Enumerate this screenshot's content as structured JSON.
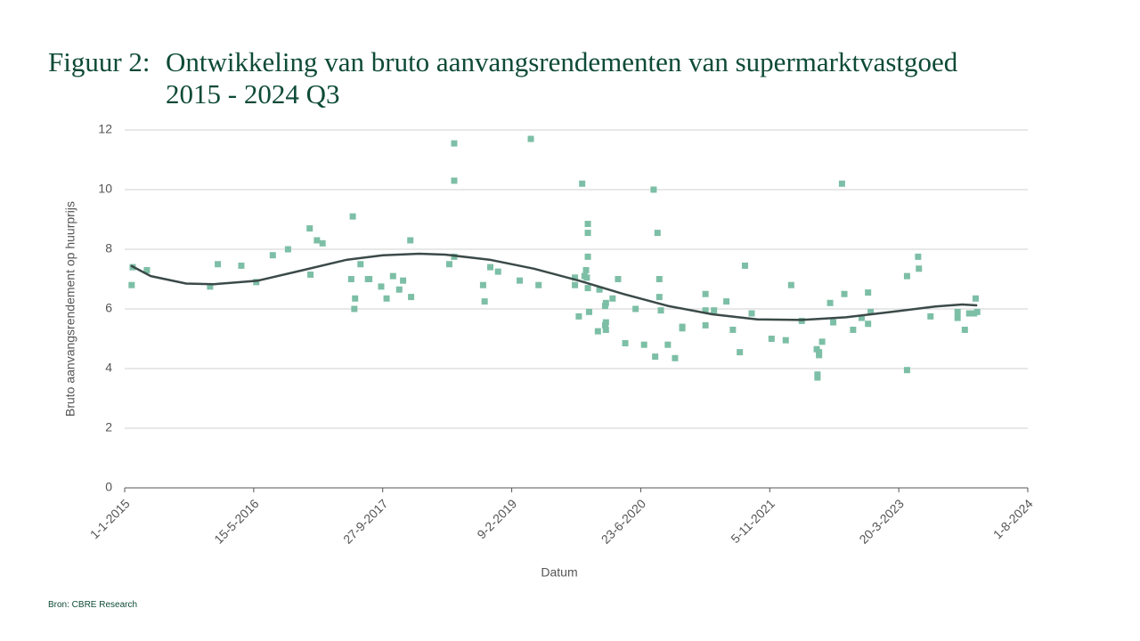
{
  "chart_data": {
    "type": "scatter",
    "label": "Figuur 2:",
    "title_lines": [
      "Ontwikkeling van bruto aanvangsrendementen van supermarktvastgoed",
      "2015 - 2024 Q3"
    ],
    "x_label": "Datum",
    "y_label": "Bruto aanvangsrendement op huurprijs",
    "source": "Bron: CBRE Research",
    "xlim": [
      "1-1-2015",
      "1-8-2024"
    ],
    "xticks": [
      "1-1-2015",
      "15-5-2016",
      "27-9-2017",
      "9-2-2019",
      "23-6-2020",
      "5-11-2021",
      "20-3-2023",
      "1-8-2024"
    ],
    "ylim": [
      0,
      12
    ],
    "yticks": [
      0,
      2,
      4,
      6,
      8,
      10,
      12
    ],
    "grid": true,
    "series": [
      {
        "type": "scatter",
        "color": "#7dbfa6",
        "x": [
          "28-1-2015",
          "1-2-2015",
          "28-3-2015",
          "28-11-2015",
          "28-12-2015",
          "28-3-2016",
          "25-5-2016",
          "28-7-2016",
          "25-9-2016",
          "18-12-2016",
          "21-12-2016",
          "15-1-2017",
          "6-2-2017",
          "3-6-2017",
          "28-5-2017",
          "9-6-2017",
          "12-6-2017",
          "3-7-2017",
          "1-8-2017",
          "6-8-2017",
          "21-9-2017",
          "12-10-2017",
          "6-11-2017",
          "30-11-2017",
          "15-12-2017",
          "12-1-2018",
          "15-1-2018",
          "12-6-2018",
          "1-7-2018",
          "1-7-2018",
          "1-7-2018",
          "21-10-2018",
          "27-10-2018",
          "18-11-2018",
          "18-12-2018",
          "12-3-2019",
          "24-4-2019",
          "24-5-2019",
          "12-10-2019",
          "12-10-2019",
          "27-10-2019",
          "9-11-2019",
          "18-11-2019",
          "24-11-2019",
          "27-11-2019",
          "1-12-2019",
          "1-12-2019",
          "1-12-2019",
          "1-12-2019",
          "6-12-2019",
          "9-1-2020",
          "15-1-2020",
          "6-2-2020",
          "9-2-2020",
          "9-2-2020",
          "6-2-2020",
          "9-2-2020",
          "6-3-2020",
          "27-3-2020",
          "24-4-2020",
          "3-6-2020",
          "6-7-2020",
          "12-8-2020",
          "18-8-2020",
          "27-8-2020",
          "3-9-2020",
          "3-9-2020",
          "9-9-2020",
          "6-10-2020",
          "3-11-2020",
          "1-12-2020",
          "1-12-2020",
          "1-3-2021",
          "1-3-2021",
          "1-3-2021",
          "3-4-2021",
          "21-5-2021",
          "15-6-2021",
          "12-7-2021",
          "1-8-2021",
          "27-8-2021",
          "12-11-2021",
          "6-1-2022",
          "27-1-2022",
          "9-3-2022",
          "6-5-2022",
          "9-5-2022",
          "9-5-2022",
          "15-5-2022",
          "15-5-2022",
          "27-5-2022",
          "27-6-2022",
          "9-7-2022",
          "12-8-2022",
          "21-8-2022",
          "24-9-2022",
          "27-10-2022",
          "21-11-2022",
          "21-11-2022",
          "1-12-2022",
          "21-4-2023",
          "21-4-2023",
          "3-6-2023",
          "6-6-2023",
          "21-7-2023",
          "3-11-2023",
          "3-11-2023",
          "1-12-2023",
          "18-12-2023",
          "6-1-2024",
          "12-1-2024",
          "18-1-2024"
        ],
        "values": [
          6.8,
          7.4,
          7.3,
          6.75,
          7.5,
          7.45,
          6.9,
          7.8,
          8.0,
          8.7,
          7.15,
          8.3,
          8.2,
          9.1,
          7.0,
          6.0,
          6.35,
          7.5,
          7.0,
          7.0,
          6.75,
          6.35,
          7.1,
          6.65,
          6.95,
          8.3,
          6.4,
          7.5,
          11.55,
          10.3,
          7.75,
          6.8,
          6.25,
          7.4,
          7.25,
          6.95,
          11.7,
          6.8,
          7.05,
          6.8,
          5.75,
          10.2,
          7.1,
          7.3,
          7.05,
          8.85,
          8.55,
          7.75,
          6.7,
          5.9,
          5.25,
          6.65,
          5.45,
          5.55,
          5.3,
          6.1,
          6.2,
          6.35,
          7.0,
          4.85,
          6.0,
          4.8,
          10.0,
          4.4,
          8.55,
          7.0,
          6.4,
          5.95,
          4.8,
          4.35,
          5.35,
          5.4,
          6.5,
          5.95,
          5.45,
          5.95,
          6.25,
          5.3,
          4.55,
          7.45,
          5.85,
          5.0,
          4.95,
          6.8,
          5.6,
          4.65,
          3.8,
          3.7,
          4.45,
          4.55,
          4.9,
          6.2,
          5.55,
          10.2,
          6.5,
          5.3,
          5.7,
          6.55,
          5.5,
          5.9,
          7.1,
          3.95,
          7.75,
          7.35,
          5.75,
          5.7,
          5.9,
          5.3,
          5.85,
          5.85,
          6.35,
          5.9
        ]
      },
      {
        "type": "line",
        "color": "#3b4a48",
        "x": [
          "25-1-2015",
          "12-4-2015",
          "27-8-2015",
          "12-12-2015",
          "1-6-2016",
          "21-11-2016",
          "12-5-2017",
          "27-9-2017",
          "15-2-2018",
          "27-5-2018",
          "15-11-2018",
          "6-5-2019",
          "27-10-2019",
          "18-4-2020",
          "6-10-2020",
          "27-3-2021",
          "18-9-2021",
          "9-3-2022",
          "27-8-2022",
          "18-2-2023",
          "9-8-2023",
          "21-11-2023",
          "18-1-2024"
        ],
        "values": [
          7.45,
          7.1,
          6.85,
          6.83,
          6.95,
          7.3,
          7.65,
          7.8,
          7.85,
          7.82,
          7.65,
          7.35,
          6.95,
          6.5,
          6.1,
          5.82,
          5.65,
          5.63,
          5.72,
          5.9,
          6.08,
          6.15,
          6.12
        ]
      }
    ]
  }
}
